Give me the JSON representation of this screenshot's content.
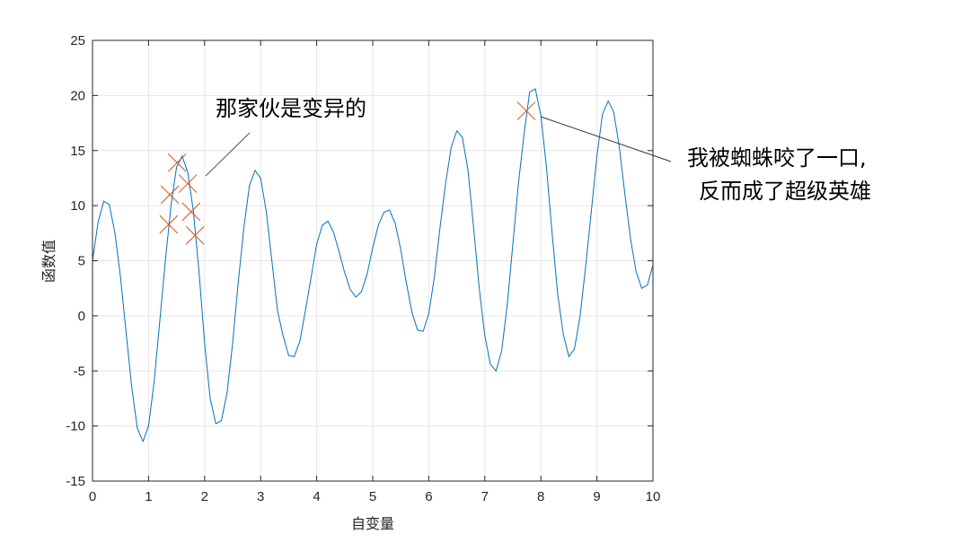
{
  "chart_data": {
    "type": "line",
    "title": "",
    "xlabel": "自变量",
    "ylabel": "函数值",
    "xlim": [
      0,
      10
    ],
    "ylim": [
      -15,
      25
    ],
    "xticks": [
      0,
      1,
      2,
      3,
      4,
      5,
      6,
      7,
      8,
      9,
      10
    ],
    "yticks": [
      -15,
      -10,
      -5,
      0,
      5,
      10,
      15,
      20,
      25
    ],
    "grid": true,
    "series": [
      {
        "color": "#0072BD",
        "x": [
          0,
          0.1,
          0.2,
          0.3,
          0.4,
          0.5,
          0.6,
          0.7,
          0.8,
          0.9,
          1,
          1.1,
          1.2,
          1.3,
          1.4,
          1.5,
          1.6,
          1.7,
          1.8,
          1.9,
          2,
          2.1,
          2.2,
          2.3,
          2.4,
          2.5,
          2.6,
          2.7,
          2.8,
          2.9,
          3,
          3.1,
          3.2,
          3.3,
          3.4,
          3.5,
          3.6,
          3.7,
          3.8,
          3.9,
          4,
          4.1,
          4.2,
          4.3,
          4.4,
          4.5,
          4.6,
          4.7,
          4.8,
          4.9,
          5,
          5.1,
          5.2,
          5.3,
          5.4,
          5.5,
          5.6,
          5.7,
          5.8,
          5.9,
          6,
          6.1,
          6.2,
          6.3,
          6.4,
          6.5,
          6.6,
          6.7,
          6.8,
          6.9,
          7,
          7.1,
          7.2,
          7.3,
          7.4,
          7.5,
          7.6,
          7.7,
          7.8,
          7.9,
          8,
          8.1,
          8.2,
          8.3,
          8.4,
          8.5,
          8.6,
          8.7,
          8.8,
          8.9,
          9,
          9.1,
          9.2,
          9.3,
          9.4,
          9.5,
          9.6,
          9.7,
          9.8,
          9.9,
          10
        ],
        "y": [
          5,
          8.5,
          10.4,
          10.1,
          7.5,
          3.5,
          -1.5,
          -6.5,
          -10.2,
          -11.4,
          -10,
          -6,
          -0.5,
          5,
          10,
          13.5,
          14.5,
          13,
          9.5,
          4,
          -2.5,
          -7.5,
          -9.8,
          -9.5,
          -7,
          -2.5,
          3,
          8,
          11.8,
          13.2,
          12.5,
          9.5,
          5,
          0.5,
          -1.8,
          -3.6,
          -3.7,
          -2.3,
          0.5,
          3.5,
          6.5,
          8.2,
          8.6,
          7.6,
          5.8,
          3.9,
          2.4,
          1.7,
          2.2,
          3.8,
          6.2,
          8.2,
          9.4,
          9.6,
          8.4,
          6,
          3,
          0.3,
          -1.3,
          -1.4,
          0.2,
          3.5,
          8,
          12,
          15.3,
          16.8,
          16.2,
          13.2,
          8,
          2.5,
          -1.8,
          -4.4,
          -5,
          -3.2,
          1,
          6.5,
          12,
          16.5,
          20.3,
          20.6,
          18.2,
          13.5,
          7.5,
          2,
          -1.7,
          -3.7,
          -3,
          0,
          4.5,
          9.5,
          14.5,
          18.3,
          19.5,
          18.5,
          15.3,
          11,
          7,
          4,
          2.5,
          2.8,
          4.6
        ]
      }
    ],
    "markers": {
      "color": "#D95319",
      "symbol": "x",
      "points": [
        [
          1.51,
          13.9
        ],
        [
          1.7,
          12.0
        ],
        [
          1.38,
          11.0
        ],
        [
          1.76,
          9.45
        ],
        [
          1.36,
          8.3
        ],
        [
          1.83,
          7.3
        ],
        [
          7.74,
          18.6
        ]
      ]
    },
    "annotations": [
      {
        "lines": [
          "那家伙是变异的"
        ]
      },
      {
        "lines": [
          "我被蜘蛛咬了一口,",
          "反而成了超级英雄"
        ]
      }
    ]
  }
}
